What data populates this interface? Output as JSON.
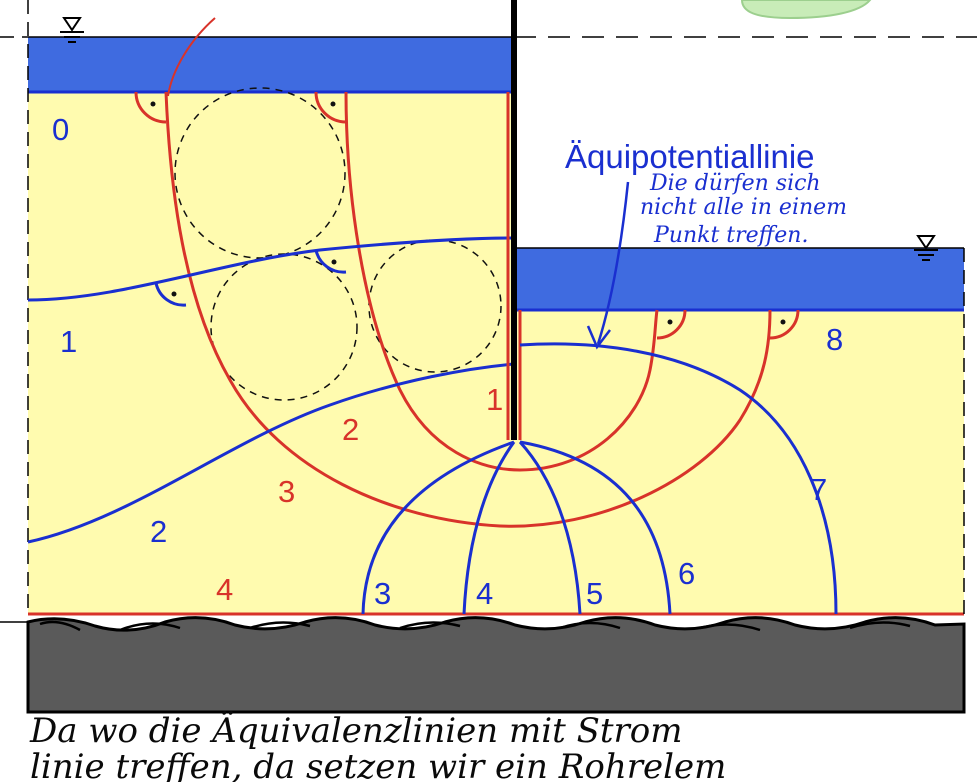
{
  "diagram": {
    "title": "Äquipotentiallinie",
    "annotation_lines": [
      "Die dürfen sich",
      "nicht alle in einem",
      "Punkt treffen."
    ],
    "bottom_note_lines": [
      "Da wo die Äquivalenzlinien mit Strom",
      "linie treffen, da setzen wir ein Rohrelem"
    ],
    "potential_labels": [
      "0",
      "1",
      "2",
      "3",
      "4",
      "5",
      "6",
      "7",
      "8"
    ],
    "stream_labels": [
      "1",
      "2",
      "3",
      "4"
    ],
    "colors": {
      "water": "#3f6be0",
      "soil": "#fffbaf",
      "rock": "#5a5a5a",
      "equipotential": "#1a2fd0",
      "streamline": "#d8332a",
      "wall": "#000000"
    },
    "icons": [
      "water-level-icon-left",
      "water-level-icon-right"
    ]
  }
}
